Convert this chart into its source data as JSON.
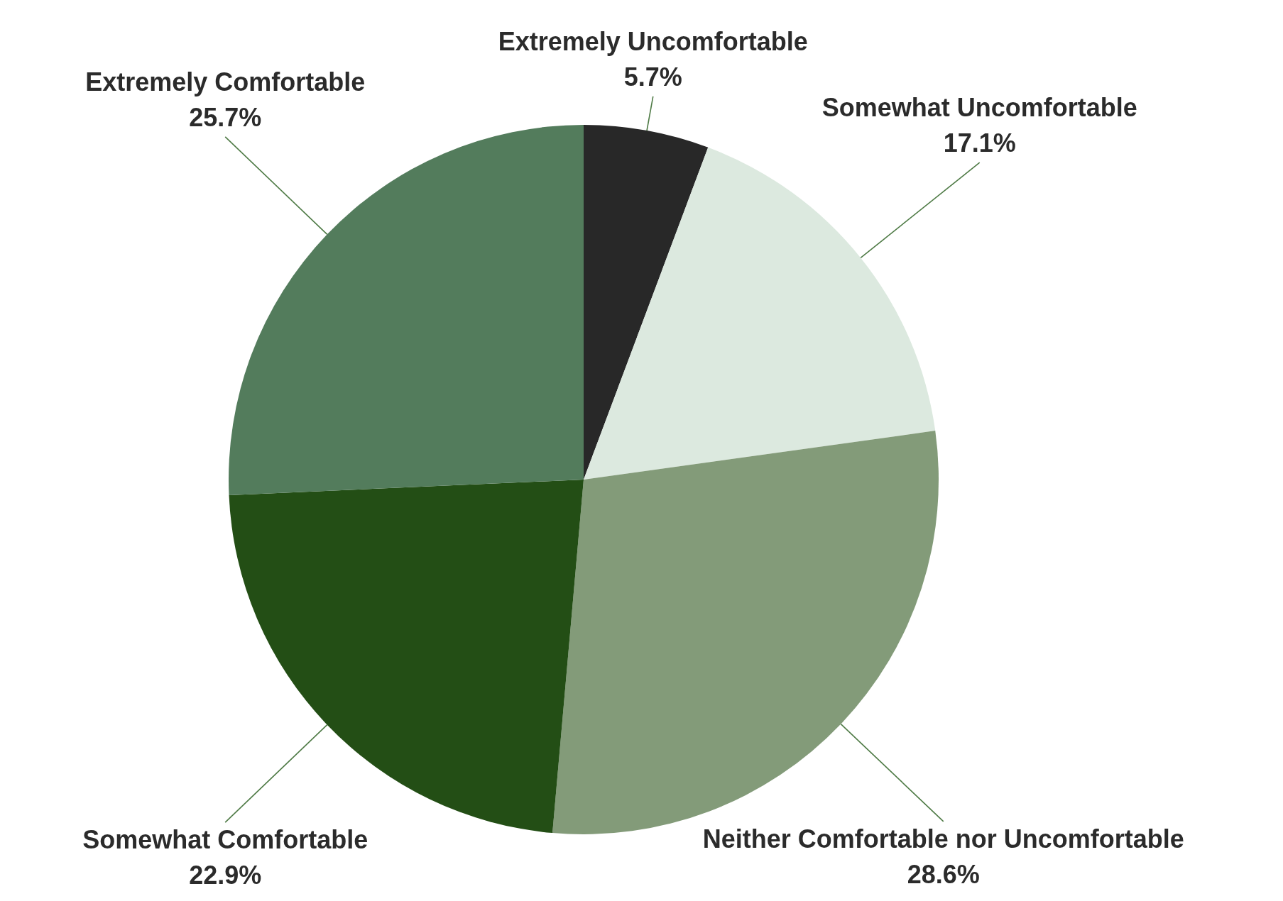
{
  "chart_data": {
    "type": "pie",
    "categories": [
      "Extremely Uncomfortable",
      "Somewhat Uncomfortable",
      "Neither Comfortable nor Uncomfortable",
      "Somewhat Comfortable",
      "Extremely Comfortable"
    ],
    "values": [
      5.7,
      17.1,
      28.6,
      22.9,
      25.7
    ],
    "colors": [
      "#282828",
      "#dce9df",
      "#839b79",
      "#234e15",
      "#537c5c"
    ],
    "value_labels": [
      "5.7%",
      "17.1%",
      "28.6%",
      "22.9%",
      "25.7%"
    ]
  }
}
